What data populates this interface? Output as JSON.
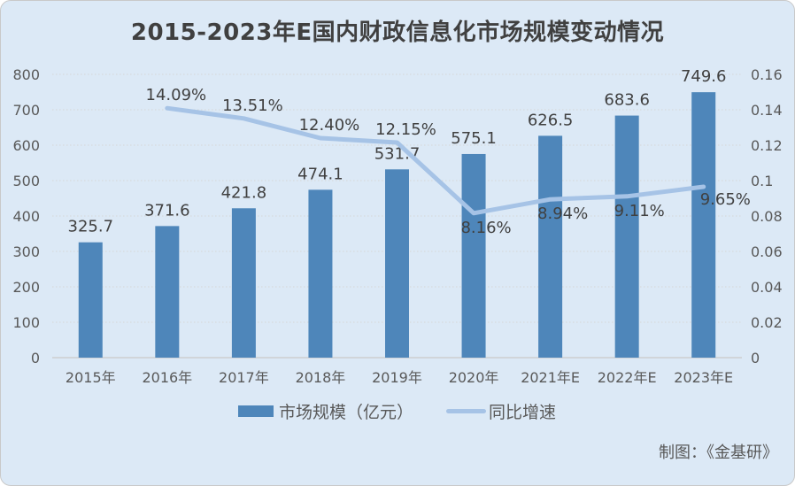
{
  "card": {
    "background": "#dce9f6",
    "border_color": "#c9c9c9"
  },
  "footer": {
    "credit": "制图：《金基研》"
  },
  "chart_data": {
    "type": "bar+line",
    "title": "2015-2023年E国内财政信息化市场规模变动情况",
    "categories": [
      "2015年",
      "2016年",
      "2017年",
      "2018年",
      "2019年",
      "2020年",
      "2021年E",
      "2022年E",
      "2023年E"
    ],
    "series": [
      {
        "name": "市场规模（亿元）",
        "type": "bar",
        "axis": "left",
        "color": "#4e86ba",
        "values": [
          325.7,
          371.6,
          421.8,
          474.1,
          531.7,
          575.1,
          626.5,
          683.6,
          749.6
        ],
        "labels": [
          "325.7",
          "371.6",
          "421.8",
          "474.1",
          "531.7",
          "575.1",
          "626.5",
          "683.6",
          "749.6"
        ]
      },
      {
        "name": "同比增速",
        "type": "line",
        "axis": "right",
        "color": "#a6c3e6",
        "values": [
          null,
          0.1409,
          0.1351,
          0.124,
          0.1215,
          0.0816,
          0.0894,
          0.0911,
          0.0965
        ],
        "labels": [
          null,
          "14.09%",
          "13.51%",
          "12.40%",
          "12.15%",
          "8.16%",
          "8.94%",
          "9.11%",
          "9.65%"
        ],
        "label_positions": [
          null,
          "above",
          "above",
          "above",
          "above",
          "below",
          "below",
          "below",
          "right"
        ]
      }
    ],
    "left_axis": {
      "min": 0,
      "max": 800,
      "step": 100,
      "tick_labels": [
        "0",
        "100",
        "200",
        "300",
        "400",
        "500",
        "600",
        "700",
        "800"
      ]
    },
    "right_axis": {
      "min": 0,
      "max": 0.16,
      "step": 0.02,
      "tick_labels": [
        "0",
        "0.02",
        "0.04",
        "0.06",
        "0.08",
        "0.1",
        "0.12",
        "0.14",
        "0.16"
      ]
    },
    "grid": {
      "horizontal": "dotted",
      "vertical": "none",
      "color": "#d6d6d6",
      "baseline_color": "#d1d5d9"
    },
    "legend_position": "bottom",
    "text_colors": {
      "title": "#404040",
      "axis": "#595959",
      "data_labels": "#404040"
    }
  }
}
